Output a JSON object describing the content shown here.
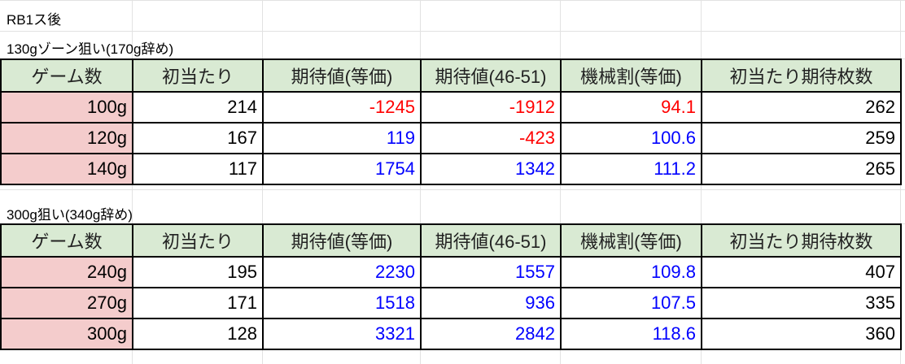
{
  "sheet": {
    "title": "RB1ス後",
    "colors": {
      "header_bg": "#d9ead3",
      "game_bg": "#f4cccc",
      "negative": "#ff0000",
      "positive": "#0000ff"
    },
    "headers": [
      "ゲーム数",
      "初当たり",
      "期待値(等価)",
      "期待値(46-51)",
      "機械割(等価)",
      "初当たり期待枚数"
    ],
    "sections": [
      {
        "label": "130gゾーン狙い(170g辞め)",
        "rows": [
          [
            "100g",
            "214",
            "-1245",
            "-1912",
            "94.1",
            "262"
          ],
          [
            "120g",
            "167",
            "119",
            "-423",
            "100.6",
            "259"
          ],
          [
            "140g",
            "117",
            "1754",
            "1342",
            "111.2",
            "265"
          ]
        ]
      },
      {
        "label": "300g狙い(340g辞め)",
        "rows": [
          [
            "240g",
            "195",
            "2230",
            "1557",
            "109.8",
            "407"
          ],
          [
            "270g",
            "171",
            "1518",
            "936",
            "107.5",
            "335"
          ],
          [
            "300g",
            "128",
            "3321",
            "2842",
            "118.6",
            "360"
          ]
        ]
      }
    ]
  }
}
